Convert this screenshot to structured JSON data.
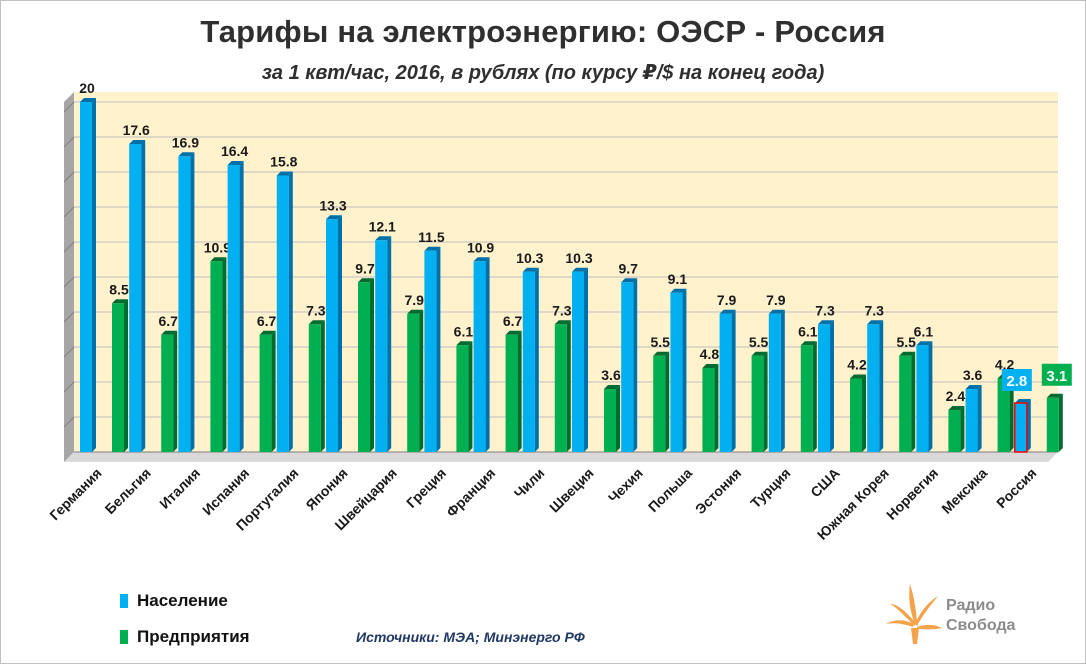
{
  "chart_data": {
    "type": "bar",
    "title": "Тарифы на электроэнергию: ОЭСР - Россия",
    "subtitle": "за 1 квт/час, 2016, в рублях (по курсу ₽/$ на конец года)",
    "categories": [
      "Германия",
      "Бельгия",
      "Италия",
      "Испания",
      "Португалия",
      "Япония",
      "Швейцария",
      "Греция",
      "Франция",
      "Чили",
      "Швеция",
      "Чехия",
      "Польша",
      "Эстония",
      "Турция",
      "США",
      "Южная Корея",
      "Норвегия",
      "Мексика",
      "Россия"
    ],
    "series": [
      {
        "name": "Население",
        "values": [
          20,
          17.6,
          16.9,
          16.4,
          15.8,
          13.3,
          12.1,
          11.5,
          10.9,
          10.3,
          10.3,
          9.7,
          9.1,
          7.9,
          7.9,
          7.3,
          7.3,
          6.1,
          3.6,
          2.8
        ]
      },
      {
        "name": "Предприятия",
        "values": [
          8.5,
          6.7,
          10.9,
          6.7,
          7.3,
          9.7,
          7.9,
          6.1,
          6.7,
          7.3,
          3.6,
          5.5,
          4.8,
          5.5,
          6.1,
          4.2,
          5.5,
          2.4,
          4.2,
          3.1
        ]
      }
    ],
    "ylim": [
      0,
      20
    ],
    "grid": true,
    "legend": "bottom-left",
    "colors": {
      "population": "#00b0f0",
      "population_dark": "#0070a8",
      "enterprise": "#00b050",
      "enterprise_dark": "#006b30",
      "plot_background": "#fff2cc",
      "highlight_outline": "#ff0000"
    }
  },
  "source": "Источники: МЭА; Минэнерго РФ",
  "logo": {
    "line1": "Радио",
    "line2": "Свобода",
    "icon": "liberty-torch-icon",
    "color": "#f5a34a"
  }
}
